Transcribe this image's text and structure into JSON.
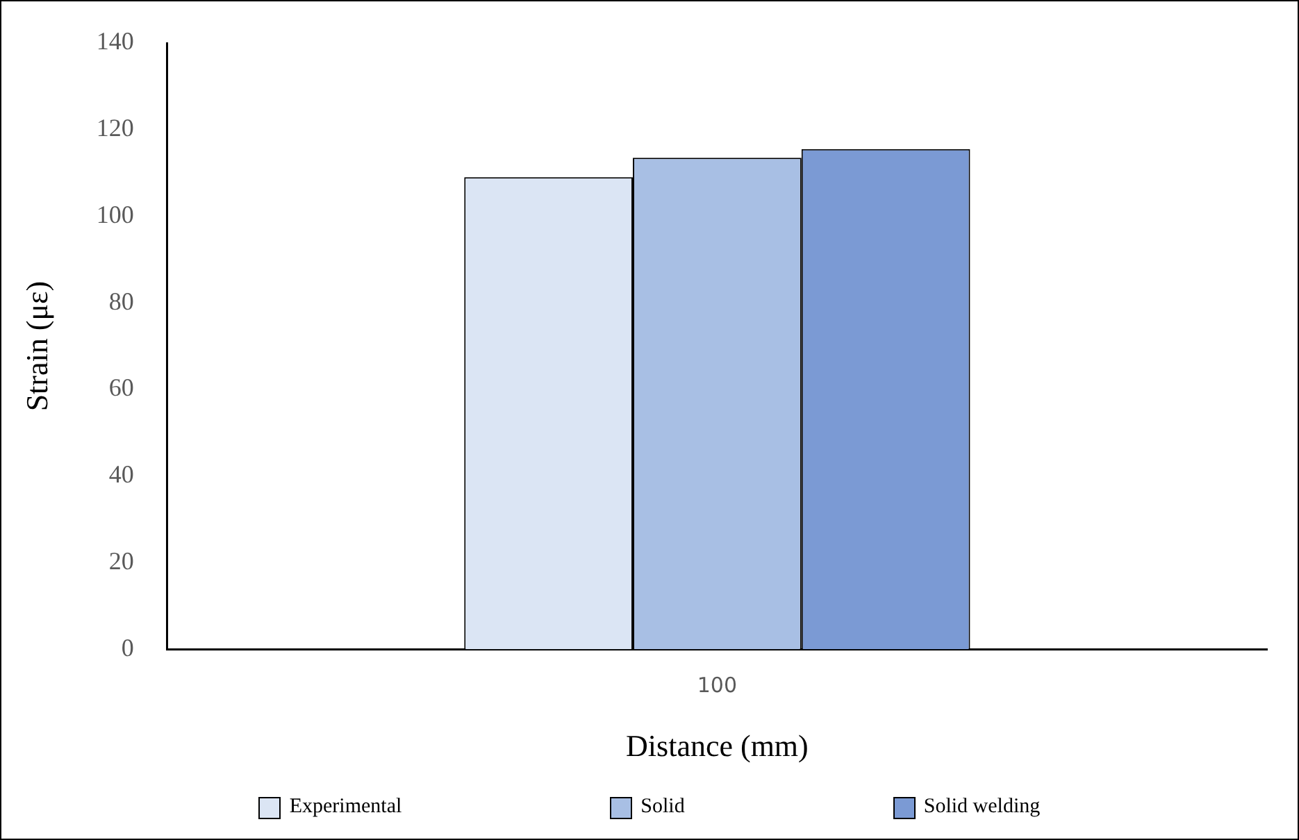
{
  "chart_data": {
    "type": "bar",
    "xlabel": "Distance (mm)",
    "ylabel": "Strain (με)",
    "categories": [
      "100"
    ],
    "series": [
      {
        "name": "Experimental",
        "color": "#dbe5f4",
        "values": [
          109
        ]
      },
      {
        "name": "Solid",
        "color": "#a8bfe4",
        "values": [
          113.5
        ]
      },
      {
        "name": "Solid welding",
        "color": "#7b9ad4",
        "values": [
          115.5
        ]
      }
    ],
    "ylim": [
      0,
      140
    ],
    "yticks": [
      0,
      20,
      40,
      60,
      80,
      100,
      120,
      140
    ],
    "grid": false,
    "legend": "bottom"
  }
}
